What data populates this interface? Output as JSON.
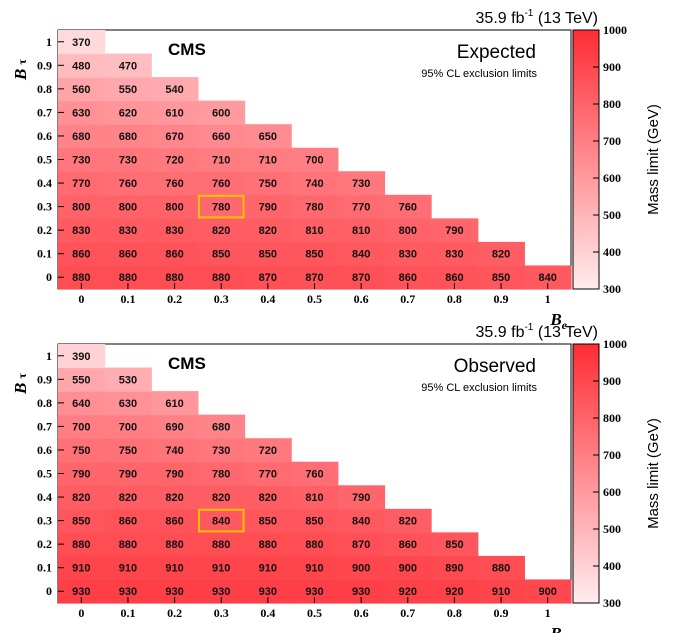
{
  "chart_data": [
    {
      "type": "heatmap",
      "experiment_label": "CMS",
      "title": "Expected",
      "subtitle": "95% CL exclusion limits",
      "lumi_label": {
        "value": "35.9 fb",
        "sup": "-1",
        "energy": " (13 TeV)"
      },
      "xlabel": {
        "symbol": "B",
        "sub": "e"
      },
      "ylabel": {
        "symbol": "B",
        "sub": "τ"
      },
      "x_ticks": [
        "0",
        "0.1",
        "0.2",
        "0.3",
        "0.4",
        "0.5",
        "0.6",
        "0.7",
        "0.8",
        "0.9",
        "1"
      ],
      "y_ticks": [
        "0",
        "0.1",
        "0.2",
        "0.3",
        "0.4",
        "0.5",
        "0.6",
        "0.7",
        "0.8",
        "0.9",
        "1"
      ],
      "colorbar": {
        "label": "Mass limit (GeV)",
        "range": [
          300,
          1000
        ],
        "ticks": [
          "300",
          "400",
          "500",
          "600",
          "700",
          "800",
          "900",
          "1000"
        ]
      },
      "highlight": {
        "B_e": "0.3",
        "B_tau": "0.3"
      },
      "rows": [
        [
          "880",
          "880",
          "880",
          "880",
          "870",
          "870",
          "870",
          "860",
          "860",
          "850",
          "840"
        ],
        [
          "860",
          "860",
          "860",
          "850",
          "850",
          "850",
          "840",
          "830",
          "830",
          "820"
        ],
        [
          "830",
          "830",
          "830",
          "820",
          "820",
          "810",
          "810",
          "800",
          "790"
        ],
        [
          "800",
          "800",
          "800",
          "780",
          "790",
          "780",
          "770",
          "760"
        ],
        [
          "770",
          "760",
          "760",
          "760",
          "750",
          "740",
          "730"
        ],
        [
          "730",
          "730",
          "720",
          "710",
          "710",
          "700"
        ],
        [
          "680",
          "680",
          "670",
          "660",
          "650"
        ],
        [
          "630",
          "620",
          "610",
          "600"
        ],
        [
          "560",
          "550",
          "540"
        ],
        [
          "480",
          "470"
        ],
        [
          "370"
        ]
      ]
    },
    {
      "type": "heatmap",
      "experiment_label": "CMS",
      "title": "Observed",
      "subtitle": "95% CL exclusion limits",
      "lumi_label": {
        "value": "35.9 fb",
        "sup": "-1",
        "energy": " (13 TeV)"
      },
      "xlabel": {
        "symbol": "B",
        "sub": "e"
      },
      "ylabel": {
        "symbol": "B",
        "sub": "τ"
      },
      "x_ticks": [
        "0",
        "0.1",
        "0.2",
        "0.3",
        "0.4",
        "0.5",
        "0.6",
        "0.7",
        "0.8",
        "0.9",
        "1"
      ],
      "y_ticks": [
        "0",
        "0.1",
        "0.2",
        "0.3",
        "0.4",
        "0.5",
        "0.6",
        "0.7",
        "0.8",
        "0.9",
        "1"
      ],
      "colorbar": {
        "label": "Mass limit (GeV)",
        "range": [
          300,
          1000
        ],
        "ticks": [
          "300",
          "400",
          "500",
          "600",
          "700",
          "800",
          "900",
          "1000"
        ]
      },
      "highlight": {
        "B_e": "0.3",
        "B_tau": "0.3"
      },
      "rows": [
        [
          "930",
          "930",
          "930",
          "930",
          "930",
          "930",
          "930",
          "920",
          "920",
          "910",
          "900"
        ],
        [
          "910",
          "910",
          "910",
          "910",
          "910",
          "910",
          "900",
          "900",
          "890",
          "880"
        ],
        [
          "880",
          "880",
          "880",
          "880",
          "880",
          "880",
          "870",
          "860",
          "850"
        ],
        [
          "850",
          "860",
          "860",
          "840",
          "850",
          "850",
          "840",
          "820"
        ],
        [
          "820",
          "820",
          "820",
          "820",
          "820",
          "810",
          "790"
        ],
        [
          "790",
          "790",
          "790",
          "780",
          "770",
          "760"
        ],
        [
          "750",
          "750",
          "740",
          "730",
          "720"
        ],
        [
          "700",
          "700",
          "690",
          "680"
        ],
        [
          "640",
          "630",
          "610"
        ],
        [
          "550",
          "530"
        ],
        [
          "390"
        ]
      ]
    }
  ]
}
